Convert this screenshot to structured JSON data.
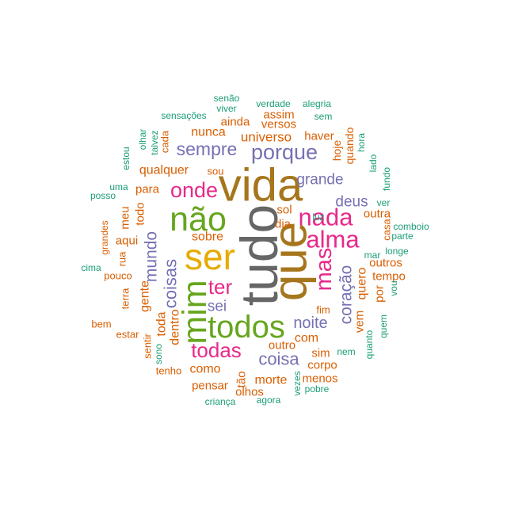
{
  "chart_data": {
    "type": "wordcloud",
    "colors": {
      "c1": "#1B9E77",
      "c2": "#D95F02",
      "c3": "#7570B3",
      "c4": "#E7298A",
      "c5": "#66A61E",
      "c6": "#E6AB02",
      "c7": "#A6761D",
      "c8": "#666666"
    },
    "words": [
      {
        "text": "tudo",
        "weight": 100,
        "color": "c8"
      },
      {
        "text": "que",
        "weight": 92,
        "color": "c7"
      },
      {
        "text": "vida",
        "weight": 88,
        "color": "c7"
      },
      {
        "text": "ser",
        "weight": 78,
        "color": "c6"
      },
      {
        "text": "não",
        "weight": 72,
        "color": "c5"
      },
      {
        "text": "mim",
        "weight": 66,
        "color": "c5"
      },
      {
        "text": "todos",
        "weight": 64,
        "color": "c5"
      },
      {
        "text": "nada",
        "weight": 50,
        "color": "c4"
      },
      {
        "text": "alma",
        "weight": 50,
        "color": "c4"
      },
      {
        "text": "mas",
        "weight": 48,
        "color": "c4"
      },
      {
        "text": "onde",
        "weight": 46,
        "color": "c4"
      },
      {
        "text": "porque",
        "weight": 44,
        "color": "c3"
      },
      {
        "text": "todas",
        "weight": 42,
        "color": "c4"
      },
      {
        "text": "ter",
        "weight": 42,
        "color": "c4"
      },
      {
        "text": "sempre",
        "weight": 40,
        "color": "c3"
      },
      {
        "text": "coisas",
        "weight": 38,
        "color": "c3"
      },
      {
        "text": "coisa",
        "weight": 36,
        "color": "c3"
      },
      {
        "text": "coração",
        "weight": 36,
        "color": "c3"
      },
      {
        "text": "mundo",
        "weight": 34,
        "color": "c3"
      },
      {
        "text": "noite",
        "weight": 34,
        "color": "c3"
      },
      {
        "text": "deus",
        "weight": 32,
        "color": "c3"
      },
      {
        "text": "grande",
        "weight": 32,
        "color": "c3"
      },
      {
        "text": "sei",
        "weight": 32,
        "color": "c3"
      },
      {
        "text": "universo",
        "weight": 28,
        "color": "c2"
      },
      {
        "text": "qualquer",
        "weight": 26,
        "color": "c2"
      },
      {
        "text": "nunca",
        "weight": 26,
        "color": "c2"
      },
      {
        "text": "quero",
        "weight": 26,
        "color": "c2"
      },
      {
        "text": "gente",
        "weight": 26,
        "color": "c2"
      },
      {
        "text": "dentro",
        "weight": 26,
        "color": "c2"
      },
      {
        "text": "sobre",
        "weight": 26,
        "color": "c2"
      },
      {
        "text": "como",
        "weight": 26,
        "color": "c2"
      },
      {
        "text": "com",
        "weight": 26,
        "color": "c2"
      },
      {
        "text": "morte",
        "weight": 26,
        "color": "c2"
      },
      {
        "text": "toda",
        "weight": 26,
        "color": "c2"
      },
      {
        "text": "outros",
        "weight": 24,
        "color": "c2"
      },
      {
        "text": "sim",
        "weight": 24,
        "color": "c2"
      },
      {
        "text": "para",
        "weight": 22,
        "color": "c2"
      },
      {
        "text": "haver",
        "weight": 22,
        "color": "c2"
      },
      {
        "text": "versos",
        "weight": 22,
        "color": "c2"
      },
      {
        "text": "assim",
        "weight": 22,
        "color": "c2"
      },
      {
        "text": "aqui",
        "weight": 22,
        "color": "c2"
      },
      {
        "text": "meu",
        "weight": 22,
        "color": "c2"
      },
      {
        "text": "todo",
        "weight": 22,
        "color": "c2"
      },
      {
        "text": "outra",
        "weight": 22,
        "color": "c2"
      },
      {
        "text": "dia",
        "weight": 22,
        "color": "c2"
      },
      {
        "text": "sol",
        "weight": 22,
        "color": "c2"
      },
      {
        "text": "tempo",
        "weight": 22,
        "color": "c2"
      },
      {
        "text": "por",
        "weight": 22,
        "color": "c2"
      },
      {
        "text": "vem",
        "weight": 22,
        "color": "c2"
      },
      {
        "text": "outro",
        "weight": 22,
        "color": "c2"
      },
      {
        "text": "pensar",
        "weight": 22,
        "color": "c2"
      },
      {
        "text": "tão",
        "weight": 22,
        "color": "c2"
      },
      {
        "text": "menos",
        "weight": 22,
        "color": "c2"
      },
      {
        "text": "corpo",
        "weight": 22,
        "color": "c2"
      },
      {
        "text": "olhos",
        "weight": 22,
        "color": "c2"
      },
      {
        "text": "ainda",
        "weight": 22,
        "color": "c2"
      },
      {
        "text": "hoje",
        "weight": 22,
        "color": "c2"
      },
      {
        "text": "quando",
        "weight": 22,
        "color": "c2"
      },
      {
        "text": "casa",
        "weight": 20,
        "color": "c2"
      },
      {
        "text": "pouco",
        "weight": 20,
        "color": "c2"
      },
      {
        "text": "rua",
        "weight": 20,
        "color": "c2"
      },
      {
        "text": "terra",
        "weight": 20,
        "color": "c2"
      },
      {
        "text": "bem",
        "weight": 20,
        "color": "c2"
      },
      {
        "text": "estar",
        "weight": 20,
        "color": "c2"
      },
      {
        "text": "tenho",
        "weight": 20,
        "color": "c2"
      },
      {
        "text": "sentir",
        "weight": 20,
        "color": "c2"
      },
      {
        "text": "fim",
        "weight": 20,
        "color": "c2"
      },
      {
        "text": "cada",
        "weight": 20,
        "color": "c2"
      },
      {
        "text": "sou",
        "weight": 20,
        "color": "c2"
      },
      {
        "text": "grandes",
        "weight": 18,
        "color": "c2"
      },
      {
        "text": "uma",
        "weight": 18,
        "color": "c1"
      },
      {
        "text": "posso",
        "weight": 18,
        "color": "c1"
      },
      {
        "text": "estou",
        "weight": 18,
        "color": "c1"
      },
      {
        "text": "olhar",
        "weight": 18,
        "color": "c1"
      },
      {
        "text": "talvez",
        "weight": 18,
        "color": "c1"
      },
      {
        "text": "sensações",
        "weight": 18,
        "color": "c1"
      },
      {
        "text": "senão",
        "weight": 18,
        "color": "c1"
      },
      {
        "text": "viver",
        "weight": 18,
        "color": "c1"
      },
      {
        "text": "verdade",
        "weight": 18,
        "color": "c1"
      },
      {
        "text": "alegria",
        "weight": 18,
        "color": "c1"
      },
      {
        "text": "sem",
        "weight": 18,
        "color": "c1"
      },
      {
        "text": "hora",
        "weight": 18,
        "color": "c1"
      },
      {
        "text": "lado",
        "weight": 18,
        "color": "c1"
      },
      {
        "text": "fundo",
        "weight": 18,
        "color": "c1"
      },
      {
        "text": "luz",
        "weight": 18,
        "color": "c1"
      },
      {
        "text": "ver",
        "weight": 18,
        "color": "c1"
      },
      {
        "text": "comboio",
        "weight": 18,
        "color": "c1"
      },
      {
        "text": "parte",
        "weight": 18,
        "color": "c1"
      },
      {
        "text": "mar",
        "weight": 18,
        "color": "c1"
      },
      {
        "text": "longe",
        "weight": 18,
        "color": "c1"
      },
      {
        "text": "vou",
        "weight": 18,
        "color": "c1"
      },
      {
        "text": "quem",
        "weight": 18,
        "color": "c1"
      },
      {
        "text": "quanto",
        "weight": 18,
        "color": "c1"
      },
      {
        "text": "nem",
        "weight": 18,
        "color": "c1"
      },
      {
        "text": "pobre",
        "weight": 18,
        "color": "c1"
      },
      {
        "text": "vezes",
        "weight": 18,
        "color": "c1"
      },
      {
        "text": "agora",
        "weight": 18,
        "color": "c1"
      },
      {
        "text": "criança",
        "weight": 18,
        "color": "c1"
      },
      {
        "text": "sono",
        "weight": 18,
        "color": "c1"
      },
      {
        "text": "cima",
        "weight": 18,
        "color": "c1"
      }
    ]
  }
}
